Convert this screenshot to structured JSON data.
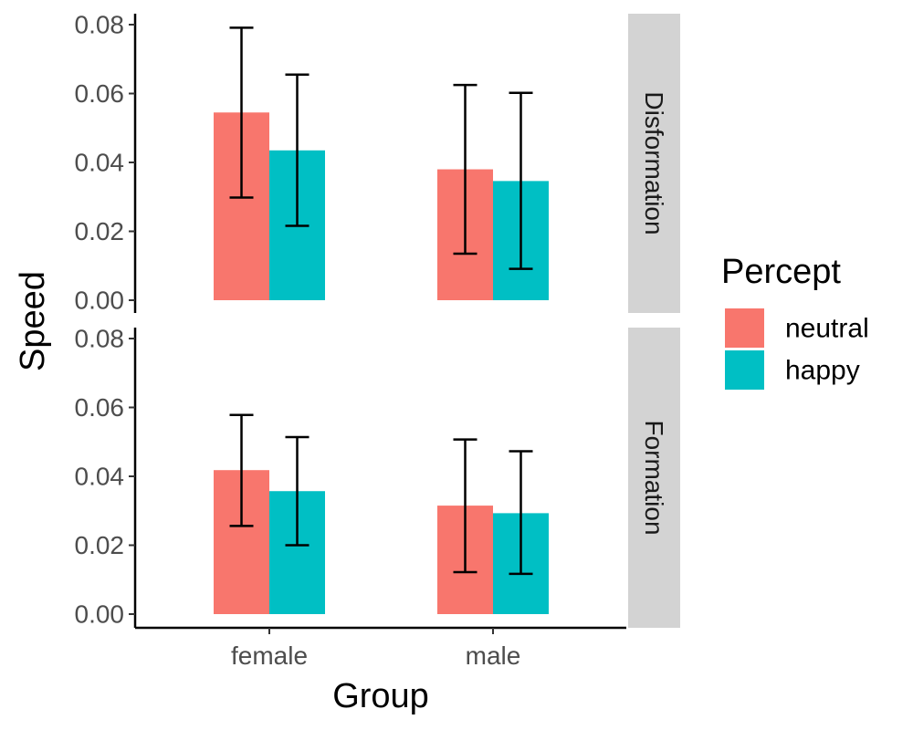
{
  "chart_data": {
    "type": "bar",
    "xlabel": "Group",
    "ylabel": "Speed",
    "categories": [
      "female",
      "male"
    ],
    "ylim": [
      0,
      0.08
    ],
    "yticks": [
      "0.00",
      "0.02",
      "0.04",
      "0.06",
      "0.08"
    ],
    "legend": {
      "title": "Percept",
      "position": "right"
    },
    "grid": false,
    "series": [
      {
        "name": "neutral",
        "color": "#F8766D"
      },
      {
        "name": "happy",
        "color": "#00BFC4"
      }
    ],
    "facets": [
      {
        "label": "Disformation",
        "values": {
          "neutral": [
            0.0545,
            0.038
          ],
          "happy": [
            0.0435,
            0.0346
          ]
        },
        "error_low": {
          "neutral": [
            0.0298,
            0.0135
          ],
          "happy": [
            0.0216,
            0.0091
          ]
        },
        "error_high": {
          "neutral": [
            0.0791,
            0.0625
          ],
          "happy": [
            0.0655,
            0.0602
          ]
        }
      },
      {
        "label": "Formation",
        "values": {
          "neutral": [
            0.0418,
            0.0315
          ],
          "happy": [
            0.0357,
            0.0293
          ]
        },
        "error_low": {
          "neutral": [
            0.0256,
            0.0122
          ],
          "happy": [
            0.02,
            0.0117
          ]
        },
        "error_high": {
          "neutral": [
            0.0578,
            0.0507
          ],
          "happy": [
            0.0514,
            0.0473
          ]
        }
      }
    ]
  }
}
